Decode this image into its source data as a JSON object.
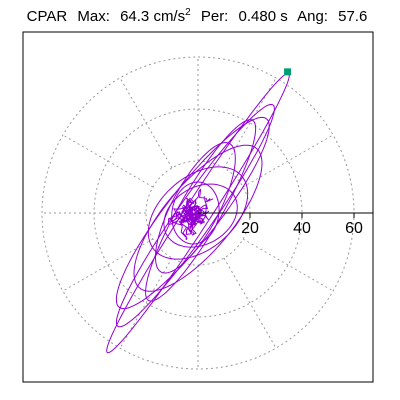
{
  "header": {
    "station": "CPAR",
    "max_label": "Max:",
    "max_value": "64.3 cm/s",
    "max_unit_exp": "2",
    "per_label": "Per:",
    "per_value": "0.480 s",
    "ang_label": "Ang:",
    "ang_value": "57.6"
  },
  "colors": {
    "trace": "#9400d3",
    "marker": "#009e73",
    "grid": "#999999",
    "axis": "#000000"
  },
  "chart_data": {
    "type": "polar-hodogram",
    "title": "",
    "rings": [
      20,
      40,
      60
    ],
    "ring_tick_labels": [
      "20",
      "40",
      "60"
    ],
    "r_max": 60,
    "spoke_step_deg": 30,
    "peak_marker": {
      "value": 64.3,
      "angle_deg": 57.6
    },
    "ellipses": [
      {
        "a": 64,
        "b": 5,
        "angle_deg": 57,
        "cx": 0,
        "cy": 0
      },
      {
        "a": 52,
        "b": 7,
        "angle_deg": 55,
        "cx": -1,
        "cy": -1
      },
      {
        "a": 46,
        "b": 10,
        "angle_deg": 52,
        "cx": -2,
        "cy": 0
      },
      {
        "a": 40,
        "b": 8,
        "angle_deg": 60,
        "cx": 1,
        "cy": 1
      },
      {
        "a": 35,
        "b": 13,
        "angle_deg": 50,
        "cx": 0,
        "cy": -2
      },
      {
        "a": 28,
        "b": 9,
        "angle_deg": 62,
        "cx": -1,
        "cy": 2
      },
      {
        "a": 22,
        "b": 14,
        "angle_deg": 40,
        "cx": 0,
        "cy": 0
      },
      {
        "a": 15,
        "b": 11,
        "angle_deg": 30,
        "cx": 1,
        "cy": -1
      },
      {
        "a": 12,
        "b": 9,
        "angle_deg": 80,
        "cx": -1,
        "cy": 0
      }
    ]
  }
}
